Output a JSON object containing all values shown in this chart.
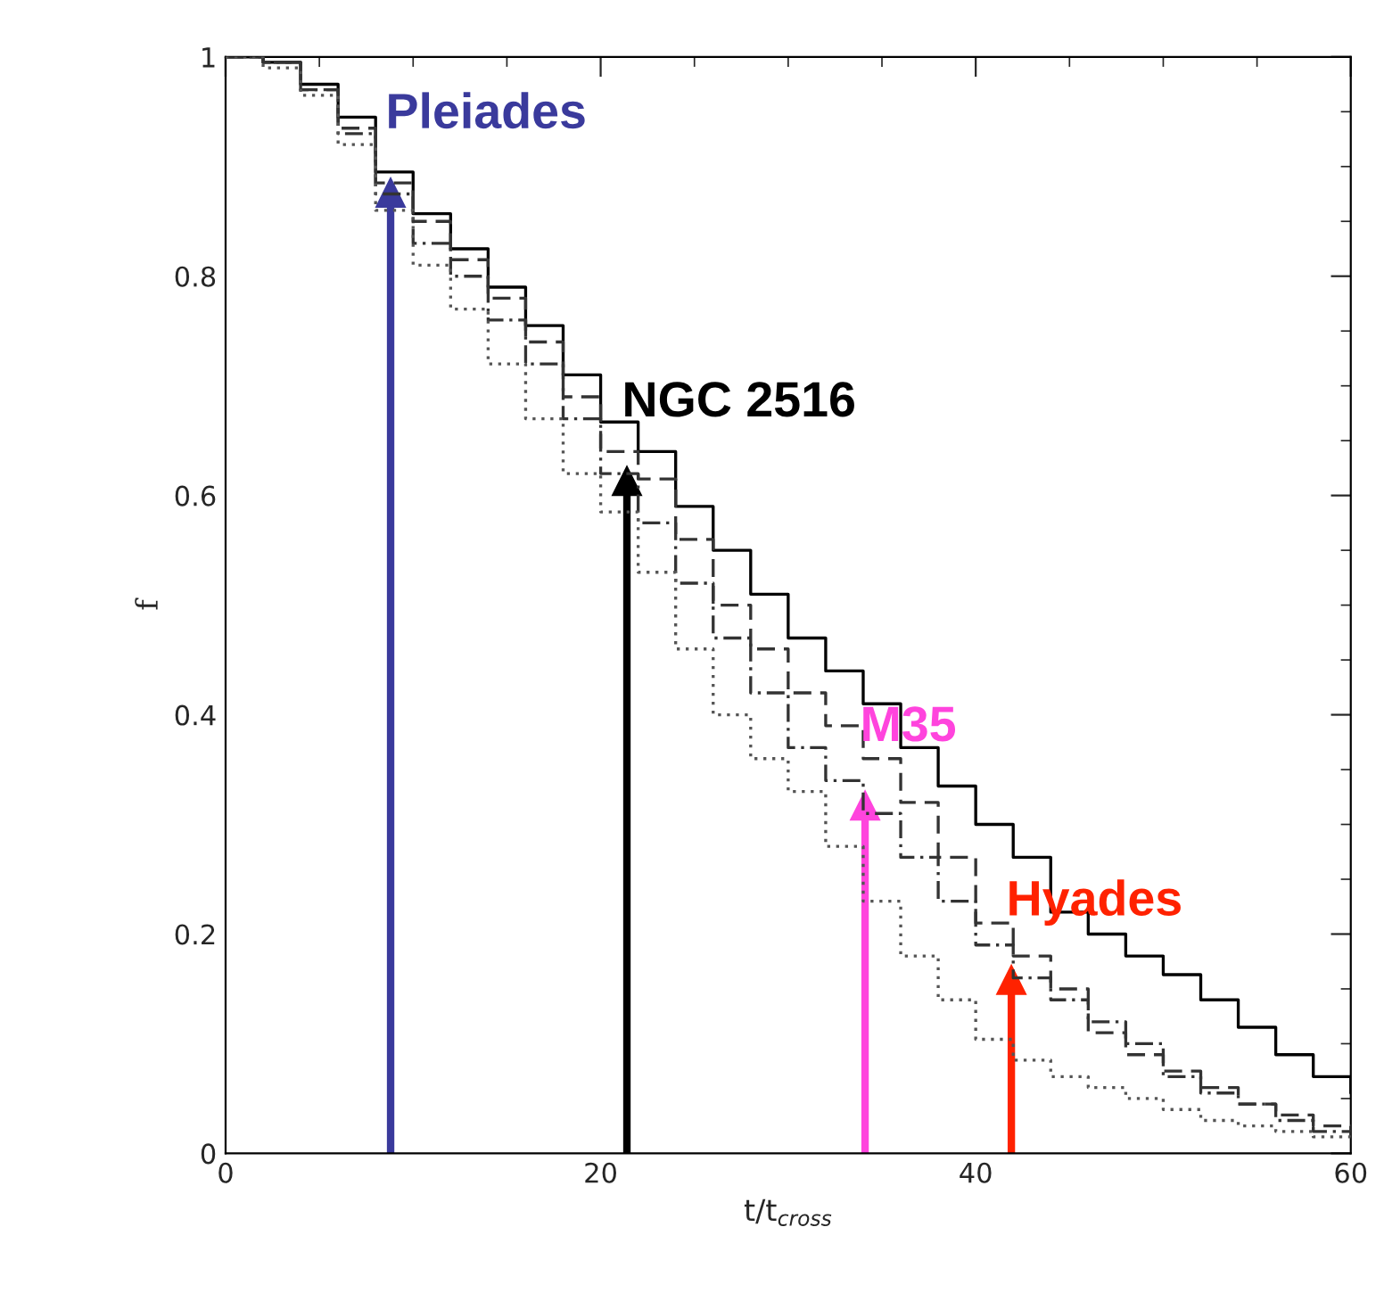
{
  "chart_data": {
    "type": "step",
    "xlabel": "t/t$_{cross}$",
    "ylabel": "f",
    "x": [
      0,
      2,
      4,
      6,
      8,
      10,
      12,
      14,
      16,
      18,
      20,
      22,
      24,
      26,
      28,
      30,
      32,
      34,
      36,
      38,
      40,
      42,
      44,
      46,
      48,
      50,
      52,
      54,
      56,
      58,
      60
    ],
    "series": [
      {
        "color": "#000000",
        "line_style": "solid",
        "values": [
          1,
          0.995,
          0.975,
          0.945,
          0.895,
          0.857,
          0.825,
          0.79,
          0.755,
          0.71,
          0.667,
          0.64,
          0.59,
          0.55,
          0.51,
          0.47,
          0.44,
          0.41,
          0.37,
          0.335,
          0.3,
          0.27,
          0.22,
          0.2,
          0.18,
          0.163,
          0.14,
          0.115,
          0.09,
          0.07,
          0.055
        ]
      },
      {
        "color": "#333333",
        "line_style": "dashed",
        "values": [
          1,
          0.995,
          0.97,
          0.935,
          0.885,
          0.85,
          0.815,
          0.78,
          0.74,
          0.69,
          0.64,
          0.615,
          0.56,
          0.5,
          0.46,
          0.42,
          0.39,
          0.36,
          0.32,
          0.27,
          0.21,
          0.18,
          0.15,
          0.11,
          0.09,
          0.075,
          0.06,
          0.045,
          0.035,
          0.025,
          0.02
        ]
      },
      {
        "color": "#333333",
        "line_style": "dashdot",
        "values": [
          1,
          0.995,
          0.97,
          0.93,
          0.875,
          0.83,
          0.8,
          0.76,
          0.72,
          0.67,
          0.62,
          0.575,
          0.52,
          0.47,
          0.42,
          0.37,
          0.34,
          0.31,
          0.27,
          0.23,
          0.19,
          0.16,
          0.14,
          0.12,
          0.1,
          0.07,
          0.055,
          0.045,
          0.03,
          0.02,
          0.015
        ]
      },
      {
        "color": "#555555",
        "line_style": "dotted",
        "values": [
          1,
          0.99,
          0.965,
          0.92,
          0.86,
          0.81,
          0.77,
          0.72,
          0.67,
          0.62,
          0.585,
          0.53,
          0.46,
          0.4,
          0.36,
          0.33,
          0.28,
          0.23,
          0.18,
          0.14,
          0.104,
          0.085,
          0.07,
          0.06,
          0.05,
          0.04,
          0.03,
          0.025,
          0.02,
          0.015,
          0.01
        ]
      },
      {
        "type": "line",
        "name": "Pleiades",
        "color": "#3a3a9c",
        "marker": "triangle",
        "x": [
          8.8,
          8.8
        ],
        "values": [
          0,
          0.876
        ]
      },
      {
        "type": "line",
        "name": "NGC 2516",
        "color": "#000000",
        "marker": "triangle",
        "x": [
          21.4,
          21.4
        ],
        "values": [
          0,
          0.613
        ]
      },
      {
        "type": "line",
        "name": "M35",
        "color": "#ff44dd",
        "marker": "triangle",
        "x": [
          34.1,
          34.1
        ],
        "values": [
          0,
          0.317
        ]
      },
      {
        "type": "line",
        "name": "Hyades",
        "color": "#ff2200",
        "marker": "triangle",
        "x": [
          41.9,
          41.9
        ],
        "values": [
          0,
          0.158
        ]
      }
    ],
    "xlim": [
      0,
      60
    ],
    "xticks": [
      0,
      20,
      40,
      60
    ],
    "ylim": [
      0,
      1
    ],
    "yticks": [
      0,
      0.2,
      0.4,
      0.6,
      0.8,
      1
    ],
    "grid": false,
    "legend": false
  }
}
